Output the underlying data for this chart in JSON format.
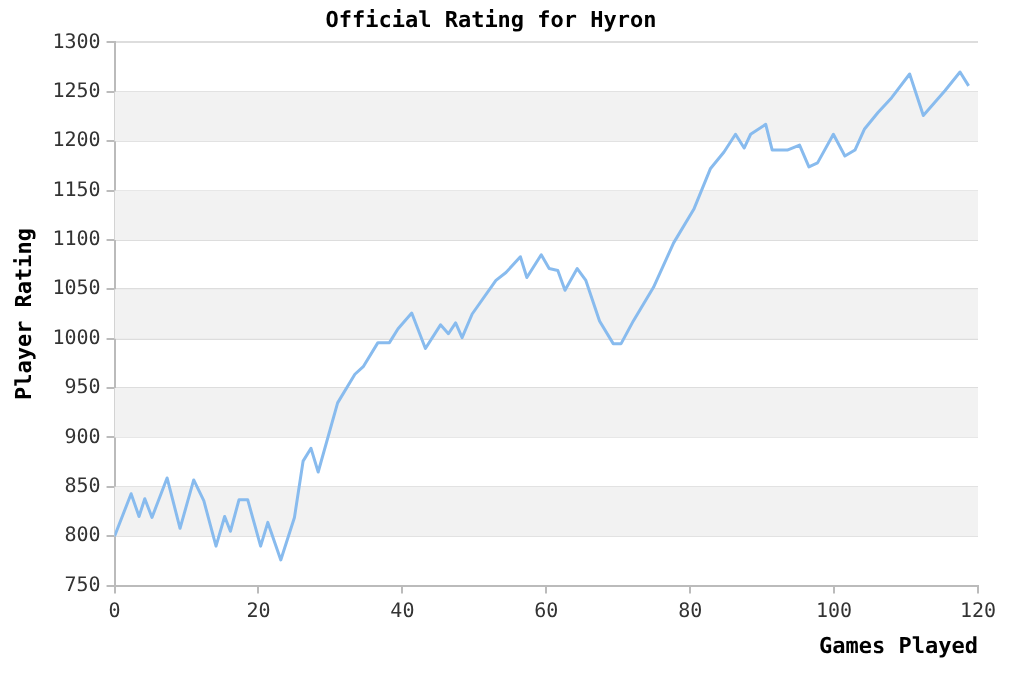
{
  "chart_data": {
    "type": "line",
    "title": "Official Rating for Hyron",
    "xlabel": "Games Played",
    "ylabel": "Player Rating",
    "series": [
      {
        "color": "#88bbee",
        "x": [
          0,
          2.3,
          3.4,
          4.2,
          5.2,
          7.3,
          9.1,
          11,
          12.4,
          14.1,
          15.3,
          16.1,
          17.3,
          18.5,
          20.3,
          21.3,
          23.1,
          25,
          26.2,
          27.3,
          28.3,
          31,
          33.4,
          34.6,
          36.6,
          38.2,
          39.4,
          41.3,
          43.2,
          45.3,
          46.4,
          47.4,
          48.3,
          49.7,
          53,
          54.4,
          56.4,
          57.3,
          59.3,
          60.4,
          61.6,
          62.6,
          64.3,
          65.5,
          67.4,
          69.3,
          70.4,
          72.1,
          74.9,
          77.7,
          80.5,
          82.8,
          84.7,
          86.3,
          87.5,
          88.4,
          90.5,
          91.4,
          93.5,
          95.2,
          96.5,
          97.7,
          99.9,
          101.5,
          102.9,
          104.2,
          106.1,
          108,
          110.5,
          112.4,
          115.4,
          117.5,
          118.7
        ],
        "values": [
          800,
          843,
          820,
          838,
          819,
          859,
          808,
          857,
          836,
          790,
          820,
          805,
          837,
          837,
          790,
          814,
          776,
          819,
          876,
          889,
          865,
          935,
          964,
          972,
          996,
          996,
          1010,
          1026,
          990,
          1014,
          1005,
          1016,
          1001,
          1025,
          1059,
          1067,
          1083,
          1062,
          1085,
          1071,
          1069,
          1049,
          1071,
          1059,
          1018,
          995,
          995,
          1018,
          1052,
          1097,
          1131,
          1172,
          1189,
          1207,
          1193,
          1207,
          1217,
          1191,
          1191,
          1196,
          1174,
          1178,
          1207,
          1185,
          1191,
          1212,
          1229,
          1244,
          1268,
          1226,
          1251,
          1270,
          1256
        ]
      }
    ],
    "xlim": [
      0,
      120
    ],
    "xticks": [
      0,
      20,
      40,
      60,
      80,
      100,
      120
    ],
    "ylim": [
      750,
      1300
    ],
    "yticks": [
      750,
      800,
      850,
      900,
      950,
      1000,
      1050,
      1100,
      1150,
      1200,
      1250,
      1300
    ],
    "bands": [
      {
        "axis": "y",
        "from": 800,
        "to": 850,
        "color": "#f2f2f2"
      },
      {
        "axis": "y",
        "from": 900,
        "to": 950,
        "color": "#f2f2f2"
      },
      {
        "axis": "y",
        "from": 1000,
        "to": 1050,
        "color": "#f2f2f2"
      },
      {
        "axis": "y",
        "from": 1100,
        "to": 1150,
        "color": "#f2f2f2"
      },
      {
        "axis": "y",
        "from": 1200,
        "to": 1250,
        "color": "#f2f2f2"
      }
    ],
    "grid": "y",
    "legend": false,
    "marker": "none",
    "line_style": "solid"
  }
}
